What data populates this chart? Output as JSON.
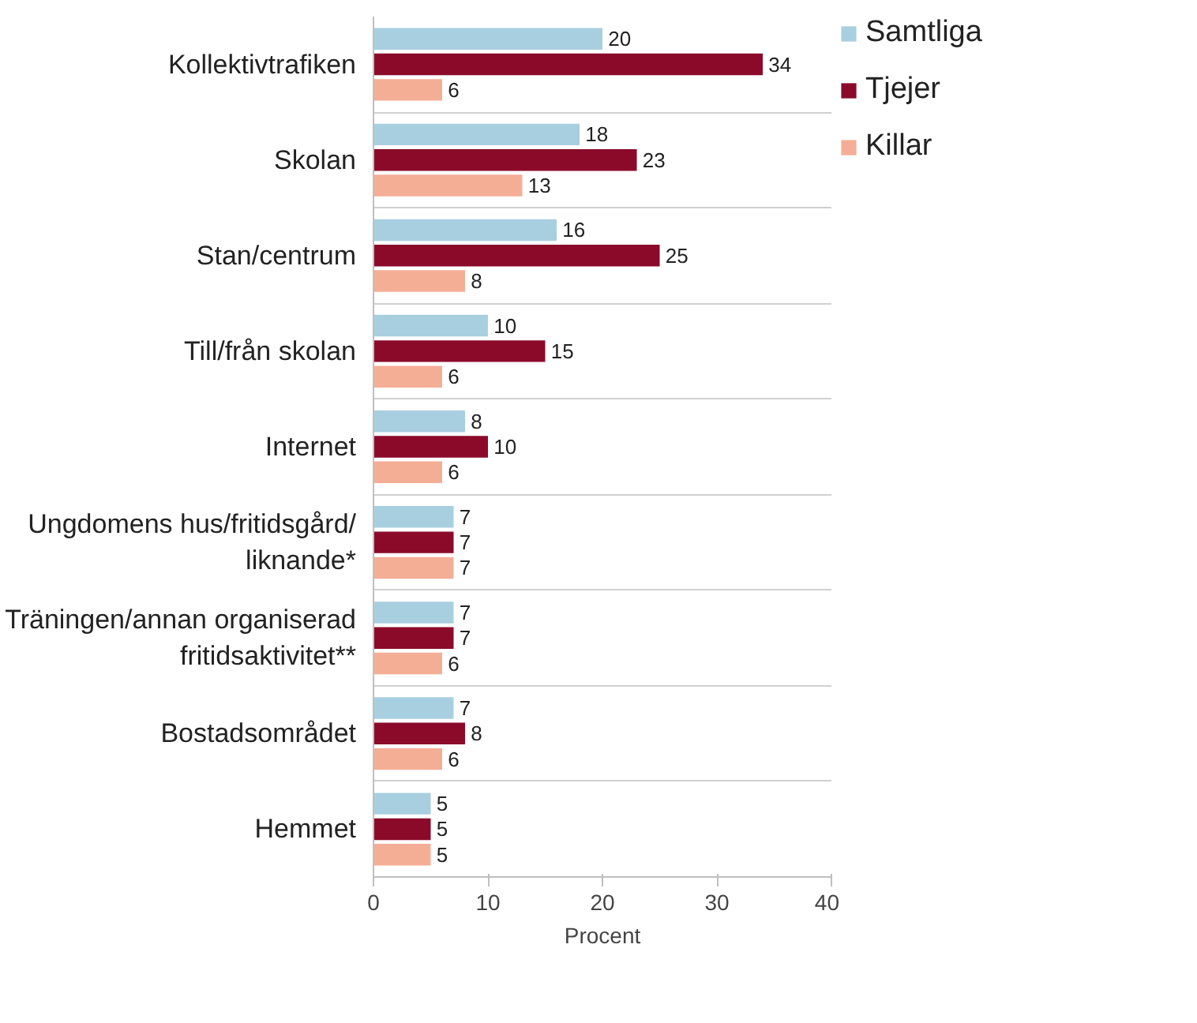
{
  "chart_data": {
    "type": "bar",
    "orientation": "horizontal",
    "xlabel": "Procent",
    "categories": [
      "Kollektivtrafiken",
      "Skolan",
      "Stan/centrum",
      "Till/från skolan",
      "Internet",
      "Ungdomens hus/fritidsgård/liknande*",
      "Träningen/annan organiserad fritidsaktivitet**",
      "Bostadsområdet",
      "Hemmet"
    ],
    "series": [
      {
        "name": "Samtliga",
        "color": "#a8cfe0",
        "values": [
          20,
          18,
          16,
          10,
          8,
          7,
          7,
          7,
          5
        ]
      },
      {
        "name": "Tjejer",
        "color": "#8b0a2a",
        "values": [
          34,
          23,
          25,
          15,
          10,
          7,
          7,
          8,
          5
        ]
      },
      {
        "name": "Killar",
        "color": "#f5ae96",
        "values": [
          6,
          13,
          8,
          6,
          6,
          7,
          6,
          6,
          5
        ]
      }
    ],
    "xlim": [
      0,
      40
    ],
    "xticks": [
      0,
      10,
      20,
      30,
      40
    ],
    "data_labels": true,
    "grid": "y",
    "legend": "top right"
  }
}
